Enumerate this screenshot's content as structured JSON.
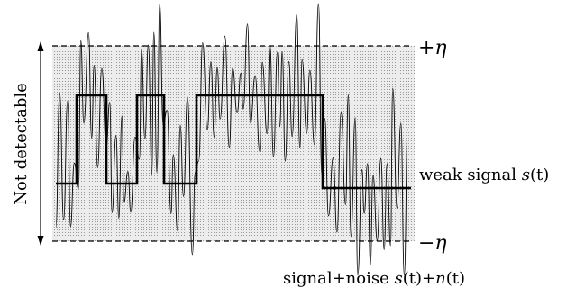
{
  "labels": {
    "upper_threshold": "+η",
    "lower_threshold": "−η",
    "band_label": "Not detectable",
    "weak_signal": {
      "text": "weak signal ",
      "symbol": "s",
      "arg": "(t)"
    },
    "noisy_signal": {
      "text": "signal+noise ",
      "s_symbol": "s",
      "s_arg": "(t)+",
      "n_symbol": "n",
      "n_arg": "(t)"
    }
  },
  "colors": {
    "band_fill": "#e6e6e6",
    "band_dots": "#9a9a9a",
    "line": "#000000"
  },
  "weak_signal_levels": [
    "low",
    "high",
    "low",
    "high",
    "low",
    "high",
    "low"
  ]
}
